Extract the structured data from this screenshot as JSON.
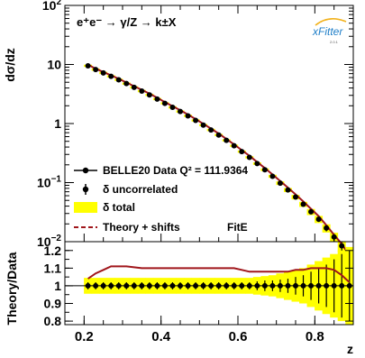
{
  "colors": {
    "data": "#000000",
    "band": "#ffff00",
    "theory": "#a0161b"
  },
  "logo": {
    "text": "xFitter",
    "version": "2.0.1"
  },
  "chart_data": [
    {
      "type": "line",
      "title": "e⁺e⁻ → γ/Z → k±X",
      "ylabel": "dσ/dz",
      "xlabel": "",
      "x_range": [
        0.15,
        0.9
      ],
      "y_range": [
        0.01,
        100
      ],
      "y_scale": "log",
      "y_ticks": [
        {
          "value": 100,
          "label_base": "10",
          "label_exp": "2"
        },
        {
          "value": 10,
          "label_base": "10",
          "label_exp": ""
        },
        {
          "value": 1,
          "label_base": "1",
          "label_exp": ""
        },
        {
          "value": 0.1,
          "label_base": "10",
          "label_exp": "−1"
        },
        {
          "value": 0.01,
          "label_base": "10",
          "label_exp": "−2"
        }
      ],
      "x": [
        0.21,
        0.23,
        0.25,
        0.27,
        0.29,
        0.31,
        0.33,
        0.35,
        0.37,
        0.39,
        0.41,
        0.43,
        0.45,
        0.47,
        0.49,
        0.51,
        0.53,
        0.55,
        0.57,
        0.59,
        0.61,
        0.63,
        0.65,
        0.67,
        0.69,
        0.71,
        0.73,
        0.75,
        0.77,
        0.79,
        0.81,
        0.83,
        0.85,
        0.87,
        0.89
      ],
      "series": [
        {
          "name": "BELLE20 Data Q² = 111.9364",
          "values": [
            9.5,
            8.2,
            7.2,
            6.3,
            5.5,
            4.75,
            4.1,
            3.55,
            3.05,
            2.6,
            2.2,
            1.88,
            1.6,
            1.35,
            1.13,
            0.94,
            0.78,
            0.64,
            0.52,
            0.42,
            0.335,
            0.268,
            0.21,
            0.165,
            0.128,
            0.098,
            0.075,
            0.057,
            0.043,
            0.032,
            0.024,
            0.017,
            0.012,
            0.0085,
            0.0055
          ],
          "rel_err_uncorrelated": [
            0.02,
            0.02,
            0.02,
            0.02,
            0.02,
            0.02,
            0.02,
            0.02,
            0.02,
            0.02,
            0.02,
            0.02,
            0.02,
            0.02,
            0.02,
            0.02,
            0.02,
            0.02,
            0.02,
            0.02,
            0.02,
            0.02,
            0.025,
            0.03,
            0.03,
            0.035,
            0.04,
            0.05,
            0.06,
            0.08,
            0.1,
            0.12,
            0.15,
            0.18,
            0.2
          ]
        },
        {
          "name": "Theory + shifts",
          "values": [
            9.9,
            8.5,
            7.45,
            6.55,
            5.72,
            4.95,
            4.28,
            3.72,
            3.2,
            2.73,
            2.31,
            1.97,
            1.68,
            1.42,
            1.19,
            0.99,
            0.82,
            0.675,
            0.549,
            0.443,
            0.354,
            0.284,
            0.223,
            0.176,
            0.137,
            0.106,
            0.082,
            0.063,
            0.048,
            0.036,
            0.027,
            0.019,
            0.013,
            0.0092,
            0.0058
          ]
        }
      ],
      "legend": {
        "placement": "bottom-left",
        "entries": [
          {
            "label": "BELLE20 Data Q² = 111.9364",
            "kind": "data"
          },
          {
            "label": "δ uncorrelated",
            "kind": "uncorr"
          },
          {
            "label": "δ total",
            "kind": "band"
          },
          {
            "label": "Theory + shifts",
            "kind": "theory"
          }
        ],
        "extra_label": "FitE"
      },
      "grid": false
    },
    {
      "type": "line",
      "ylabel": "Theory/Data",
      "xlabel": "z",
      "x_range": [
        0.15,
        0.9
      ],
      "y_range": [
        0.78,
        1.25
      ],
      "x_ticks": [
        "0.2",
        "0.4",
        "0.6",
        "0.8"
      ],
      "y_ticks": [
        "0.8",
        "0.9",
        "1",
        "1.1",
        "1.2"
      ],
      "x": [
        0.21,
        0.23,
        0.25,
        0.27,
        0.29,
        0.31,
        0.33,
        0.35,
        0.37,
        0.39,
        0.41,
        0.43,
        0.45,
        0.47,
        0.49,
        0.51,
        0.53,
        0.55,
        0.57,
        0.59,
        0.61,
        0.63,
        0.65,
        0.67,
        0.69,
        0.71,
        0.73,
        0.75,
        0.77,
        0.79,
        0.81,
        0.83,
        0.85,
        0.87,
        0.89
      ],
      "series": [
        {
          "name": "Theory + shifts",
          "values": [
            1.04,
            1.07,
            1.09,
            1.11,
            1.11,
            1.11,
            1.105,
            1.1,
            1.1,
            1.1,
            1.1,
            1.1,
            1.1,
            1.1,
            1.1,
            1.1,
            1.1,
            1.1,
            1.1,
            1.1,
            1.09,
            1.08,
            1.08,
            1.08,
            1.08,
            1.08,
            1.08,
            1.09,
            1.09,
            1.1,
            1.1,
            1.1,
            1.09,
            1.06,
            1.02
          ]
        }
      ],
      "data_ratio": 1.0,
      "band_halfwidth": [
        0.045,
        0.045,
        0.045,
        0.045,
        0.045,
        0.045,
        0.045,
        0.045,
        0.045,
        0.045,
        0.045,
        0.045,
        0.045,
        0.045,
        0.045,
        0.045,
        0.045,
        0.045,
        0.045,
        0.045,
        0.045,
        0.045,
        0.05,
        0.055,
        0.06,
        0.07,
        0.08,
        0.09,
        0.1,
        0.12,
        0.14,
        0.16,
        0.18,
        0.2,
        0.22
      ],
      "uncorr_halfwidth": [
        0.02,
        0.02,
        0.02,
        0.02,
        0.02,
        0.02,
        0.02,
        0.02,
        0.02,
        0.02,
        0.02,
        0.02,
        0.02,
        0.02,
        0.02,
        0.02,
        0.02,
        0.02,
        0.02,
        0.02,
        0.02,
        0.02,
        0.025,
        0.03,
        0.03,
        0.035,
        0.04,
        0.05,
        0.06,
        0.08,
        0.1,
        0.12,
        0.15,
        0.18,
        0.2
      ],
      "reference_line": 1.0,
      "grid": false
    }
  ]
}
